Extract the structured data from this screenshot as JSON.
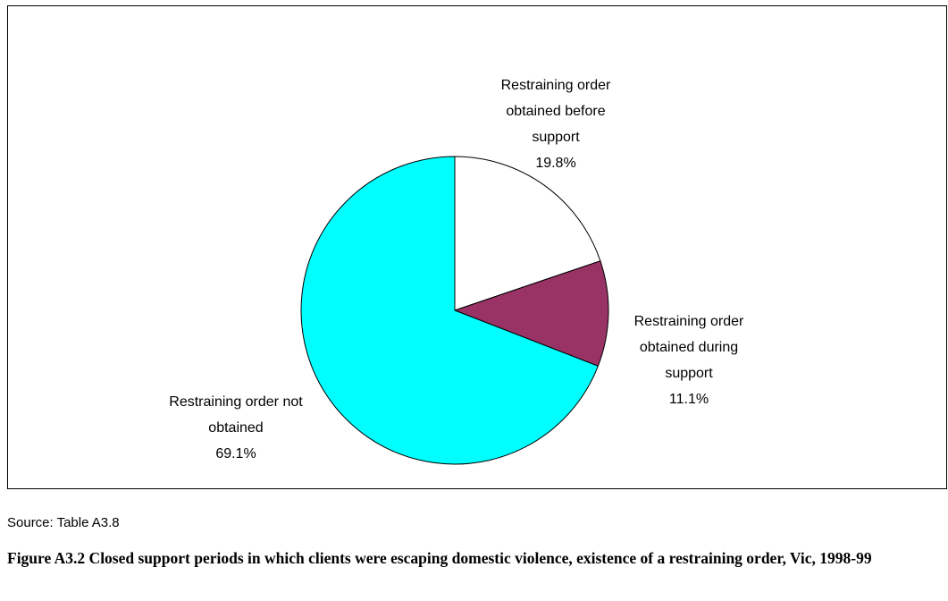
{
  "chart_data": {
    "type": "pie",
    "slices": [
      {
        "label": [
          "Restraining order",
          "obtained before",
          "support"
        ],
        "value": 19.8,
        "value_label": "19.8%",
        "color": "#ffffff"
      },
      {
        "label": [
          "Restraining order",
          "obtained during",
          "support"
        ],
        "value": 11.1,
        "value_label": "11.1%",
        "color": "#993366"
      },
      {
        "label": [
          "Restraining order not",
          "obtained"
        ],
        "value": 69.1,
        "value_label": "69.1%",
        "color": "#00ffff"
      }
    ],
    "start_angle_deg": 0,
    "direction": "clockwise",
    "outline_color": "#000000"
  },
  "source": "Source: Table A3.8",
  "caption": "Figure A3.2 Closed support periods in which clients were escaping domestic violence, existence of a restraining order, Vic, 1998-99"
}
